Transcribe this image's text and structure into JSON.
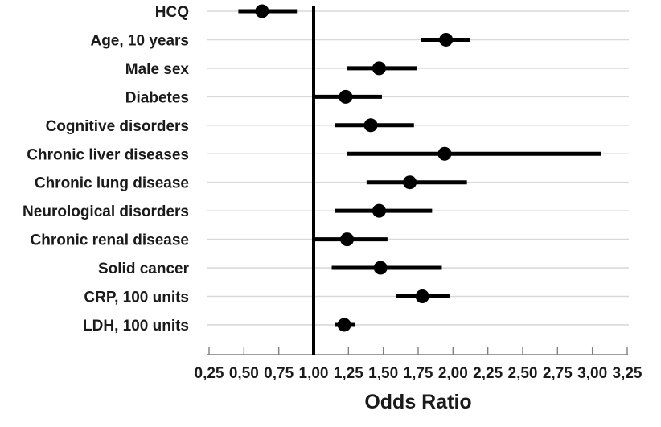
{
  "chart_data": {
    "type": "scatter",
    "subtype": "forest-plot",
    "title": "",
    "xlabel": "Odds Ratio",
    "x_axis": {
      "min": 0.25,
      "max": 3.25,
      "step": 0.25,
      "decimal_separator": ",",
      "tick_labels": [
        "0,25",
        "0,50",
        "0,75",
        "1,00",
        "1,25",
        "1,50",
        "1,75",
        "2,00",
        "2,25",
        "2,50",
        "2,75",
        "3,00",
        "3,25"
      ]
    },
    "reference_line_x": 1.0,
    "legend": "none",
    "grid": "horizontal-per-category",
    "points": [
      {
        "label": "HCQ",
        "or": 0.63,
        "ci_low": 0.46,
        "ci_high": 0.88
      },
      {
        "label": "Age, 10 years",
        "or": 1.95,
        "ci_low": 1.77,
        "ci_high": 2.12
      },
      {
        "label": "Male sex",
        "or": 1.47,
        "ci_low": 1.24,
        "ci_high": 1.74
      },
      {
        "label": "Diabetes",
        "or": 1.23,
        "ci_low": 1.01,
        "ci_high": 1.49
      },
      {
        "label": "Cognitive disorders",
        "or": 1.41,
        "ci_low": 1.15,
        "ci_high": 1.72
      },
      {
        "label": "Chronic liver diseases",
        "or": 1.94,
        "ci_low": 1.24,
        "ci_high": 3.06
      },
      {
        "label": "Chronic lung disease",
        "or": 1.69,
        "ci_low": 1.38,
        "ci_high": 2.1
      },
      {
        "label": "Neurological disorders",
        "or": 1.47,
        "ci_low": 1.15,
        "ci_high": 1.85
      },
      {
        "label": "Chronic renal disease",
        "or": 1.24,
        "ci_low": 1.01,
        "ci_high": 1.53
      },
      {
        "label": "Solid cancer",
        "or": 1.48,
        "ci_low": 1.13,
        "ci_high": 1.92
      },
      {
        "label": "CRP, 100 units",
        "or": 1.78,
        "ci_low": 1.59,
        "ci_high": 1.98
      },
      {
        "label": "LDH, 100 units",
        "or": 1.22,
        "ci_low": 1.15,
        "ci_high": 1.3
      }
    ],
    "colors": {
      "marker": "#000000",
      "ci_line": "#000000",
      "reference_line": "#000000",
      "gridline": "#d9d9d9",
      "axis_line": "#7f7f7f",
      "tick": "#7f7f7f",
      "text": "#1a1a1a"
    }
  }
}
